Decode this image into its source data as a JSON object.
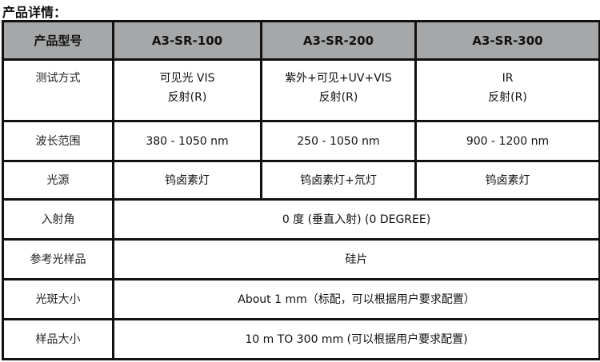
{
  "title": "产品详情：",
  "table": {
    "header": [
      "产品型号",
      "A3-SR-100",
      "A3-SR-200",
      "A3-SR-300"
    ],
    "test_method": {
      "label": "测试方式",
      "values": [
        [
          "可见光 VIS",
          "反射(R)"
        ],
        [
          "紫外+可见+UV+VIS",
          "反射(R)"
        ],
        [
          "IR",
          "反射(R)"
        ]
      ]
    },
    "wavelength": {
      "label": "波长范围",
      "values": [
        "380 - 1050 nm",
        "250 - 1050 nm",
        "900 - 1200 nm"
      ]
    },
    "light_source": {
      "label": "光源",
      "values": [
        "钨卤素灯",
        "钨卤素灯+氘灯",
        "钨卤素灯"
      ]
    },
    "incidence": {
      "label": "入射角",
      "value": "0 度 (垂直入射)  (0 DEGREE)"
    },
    "reference": {
      "label": "参考光样品",
      "value": "硅片"
    },
    "spot": {
      "label": "光斑大小",
      "value": "About 1 mm（标配，可以根据用户要求配置）"
    },
    "sample": {
      "label": "样品大小",
      "value": "10  m TO 300 mm (可以根据用户要求配置)"
    }
  }
}
